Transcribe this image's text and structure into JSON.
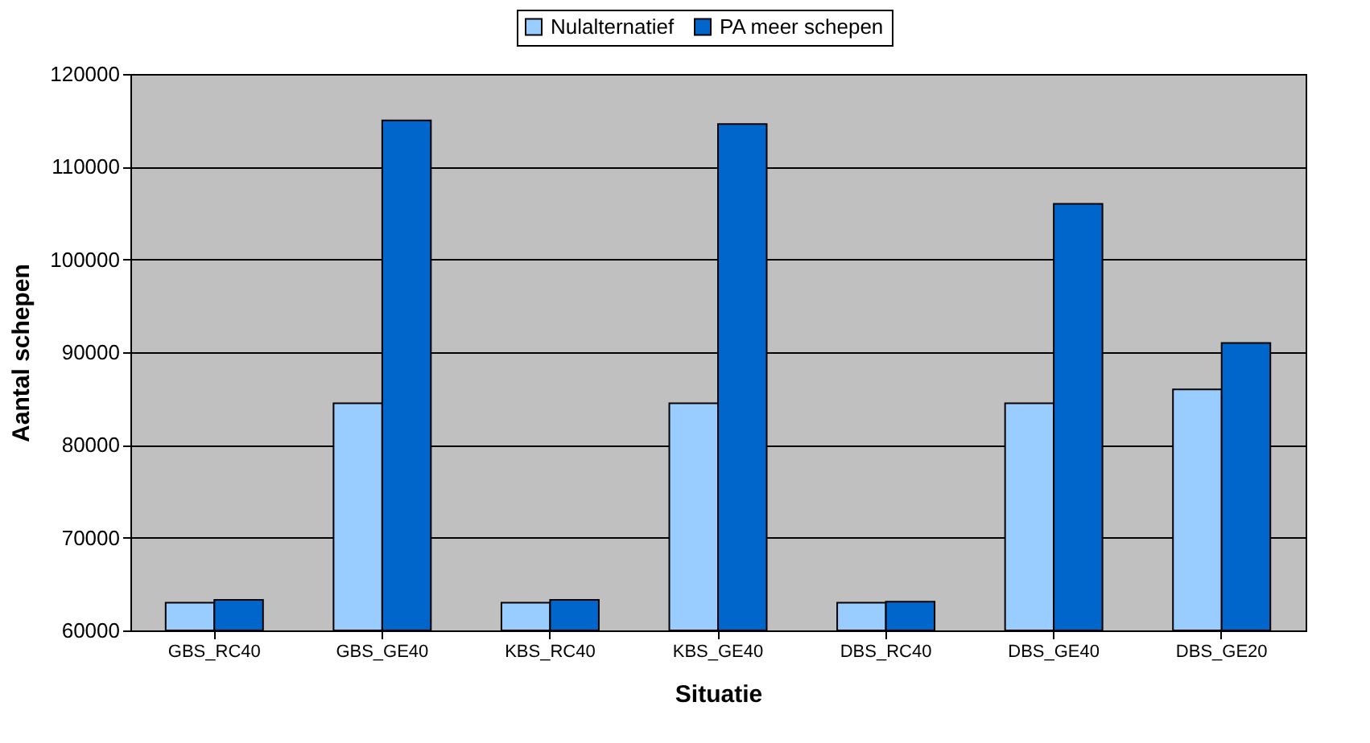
{
  "chart_data": {
    "type": "bar",
    "xlabel": "Situatie",
    "ylabel": "Aantal schepen",
    "categories": [
      "GBS_RC40",
      "GBS_GE40",
      "KBS_RC40",
      "KBS_GE40",
      "DBS_RC40",
      "DBS_GE40",
      "DBS_GE20"
    ],
    "series": [
      {
        "name": "Nulalternatief",
        "color": "#99ccff",
        "values": [
          63000,
          84500,
          63000,
          84500,
          63000,
          84500,
          86000
        ]
      },
      {
        "name": "PA meer schepen",
        "color": "#0066cc",
        "values": [
          63300,
          115000,
          63300,
          114600,
          63100,
          106000,
          91000
        ]
      }
    ],
    "ylim": [
      60000,
      120000
    ],
    "yticks": [
      60000,
      70000,
      80000,
      90000,
      100000,
      110000,
      120000
    ],
    "grid": "y",
    "legend": "top"
  }
}
